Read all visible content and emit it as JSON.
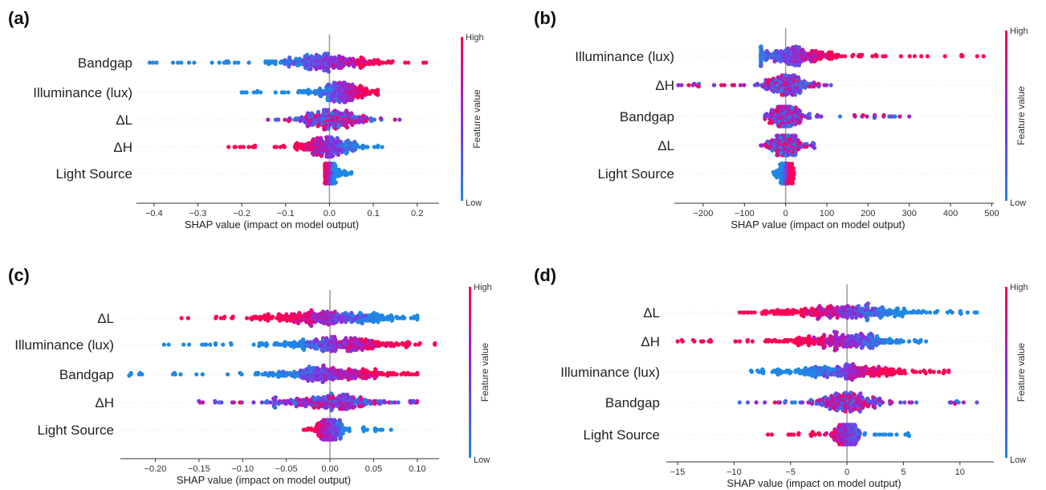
{
  "chart_data": [
    {
      "type": "scatter",
      "panel_label": "(a)",
      "xlabel": "SHAP value (impact on model output)",
      "xlim": [
        -0.44,
        0.25
      ],
      "xticks": [
        -0.4,
        -0.3,
        -0.2,
        -0.1,
        0.0,
        0.1,
        0.2
      ],
      "xtick_labels": [
        "−0.4",
        "−0.3",
        "−0.2",
        "−0.1",
        "0.0",
        "0.1",
        "0.2"
      ],
      "features": [
        "Bandgap",
        "Illuminance (lux)",
        "ΔL",
        "ΔH",
        "Light Source"
      ],
      "colorbar": {
        "high": "High",
        "low": "Low",
        "title": "Feature value"
      },
      "series": [
        {
          "feature": "Bandgap",
          "min": -0.41,
          "max": 0.22,
          "center": 0.0,
          "spread": 0.06,
          "low_side": "negative"
        },
        {
          "feature": "Illuminance (lux)",
          "min": -0.2,
          "max": 0.11,
          "center": 0.03,
          "spread": 0.035,
          "low_side": "negative"
        },
        {
          "feature": "ΔL",
          "min": -0.14,
          "max": 0.16,
          "center": 0.0,
          "spread": 0.04,
          "low_side": "mixed"
        },
        {
          "feature": "ΔH",
          "min": -0.23,
          "max": 0.12,
          "center": 0.0,
          "spread": 0.035,
          "low_side": "positive"
        },
        {
          "feature": "Light Source",
          "min": -0.01,
          "max": 0.05,
          "center": 0.0,
          "spread": 0.008,
          "low_side": "positive"
        }
      ]
    },
    {
      "type": "scatter",
      "panel_label": "(b)",
      "xlabel": "SHAP value (impact on model output)",
      "xlim": [
        -270,
        505
      ],
      "xticks": [
        -200,
        -100,
        0,
        100,
        200,
        300,
        400,
        500
      ],
      "xtick_labels": [
        "−200",
        "−100",
        "0",
        "100",
        "200",
        "300",
        "400",
        "500"
      ],
      "features": [
        "Illuminance (lux)",
        "ΔH",
        "Bandgap",
        "ΔL",
        "Light Source"
      ],
      "colorbar": {
        "high": "High",
        "low": "Low",
        "title": "Feature value"
      },
      "series": [
        {
          "feature": "Illuminance (lux)",
          "min": -60,
          "max": 480,
          "center": 20,
          "spread": 55,
          "low_side": "negative"
        },
        {
          "feature": "ΔH",
          "min": -260,
          "max": 110,
          "center": 5,
          "spread": 30,
          "low_side": "mixed"
        },
        {
          "feature": "Bandgap",
          "min": -50,
          "max": 300,
          "center": 0,
          "spread": 22,
          "low_side": "mixed"
        },
        {
          "feature": "ΔL",
          "min": -60,
          "max": 70,
          "center": 0,
          "spread": 18,
          "low_side": "mixed"
        },
        {
          "feature": "Light Source",
          "min": -30,
          "max": 20,
          "center": 0,
          "spread": 8,
          "low_side": "negative"
        }
      ]
    },
    {
      "type": "scatter",
      "panel_label": "(c)",
      "xlabel": "SHAP value (impact on model output)",
      "xlim": [
        -0.24,
        0.125
      ],
      "xticks": [
        -0.2,
        -0.15,
        -0.1,
        -0.05,
        0.0,
        0.05,
        0.1
      ],
      "xtick_labels": [
        "−0.20",
        "−0.15",
        "−0.10",
        "−0.05",
        "0.00",
        "0.05",
        "0.10"
      ],
      "features": [
        "ΔL",
        "Illuminance (lux)",
        "Bandgap",
        "ΔH",
        "Light Source"
      ],
      "colorbar": {
        "high": "High",
        "low": "Low",
        "title": "Feature value"
      },
      "series": [
        {
          "feature": "ΔL",
          "min": -0.17,
          "max": 0.1,
          "center": 0.0,
          "spread": 0.04,
          "low_side": "positive"
        },
        {
          "feature": "Illuminance (lux)",
          "min": -0.19,
          "max": 0.12,
          "center": 0.01,
          "spread": 0.035,
          "low_side": "negative"
        },
        {
          "feature": "Bandgap",
          "min": -0.23,
          "max": 0.1,
          "center": 0.0,
          "spread": 0.035,
          "low_side": "negative"
        },
        {
          "feature": "ΔH",
          "min": -0.15,
          "max": 0.1,
          "center": 0.0,
          "spread": 0.03,
          "low_side": "mixed"
        },
        {
          "feature": "Light Source",
          "min": -0.03,
          "max": 0.07,
          "center": 0.0,
          "spread": 0.008,
          "low_side": "positive"
        }
      ]
    },
    {
      "type": "scatter",
      "panel_label": "(d)",
      "xlabel": "SHAP value (impact on model output)",
      "xlim": [
        -16,
        13
      ],
      "xticks": [
        -15,
        -10,
        -5,
        0,
        5,
        10
      ],
      "xtick_labels": [
        "−15",
        "−10",
        "−5",
        "0",
        "5",
        "10"
      ],
      "features": [
        "ΔL",
        "ΔH",
        "Illuminance (lux)",
        "Bandgap",
        "Light Source"
      ],
      "colorbar": {
        "high": "High",
        "low": "Low",
        "title": "Feature value"
      },
      "series": [
        {
          "feature": "ΔL",
          "min": -9.5,
          "max": 11.5,
          "center": 0,
          "spread": 3.2,
          "low_side": "positive"
        },
        {
          "feature": "ΔH",
          "min": -15,
          "max": 7,
          "center": 0,
          "spread": 2.6,
          "low_side": "positive"
        },
        {
          "feature": "Illuminance (lux)",
          "min": -8.5,
          "max": 9,
          "center": 0,
          "spread": 2.8,
          "low_side": "negative"
        },
        {
          "feature": "Bandgap",
          "min": -9.5,
          "max": 11.5,
          "center": 0,
          "spread": 1.6,
          "low_side": "mixed"
        },
        {
          "feature": "Light Source",
          "min": -7,
          "max": 5.5,
          "center": 0,
          "spread": 0.6,
          "low_side": "positive"
        }
      ]
    }
  ]
}
